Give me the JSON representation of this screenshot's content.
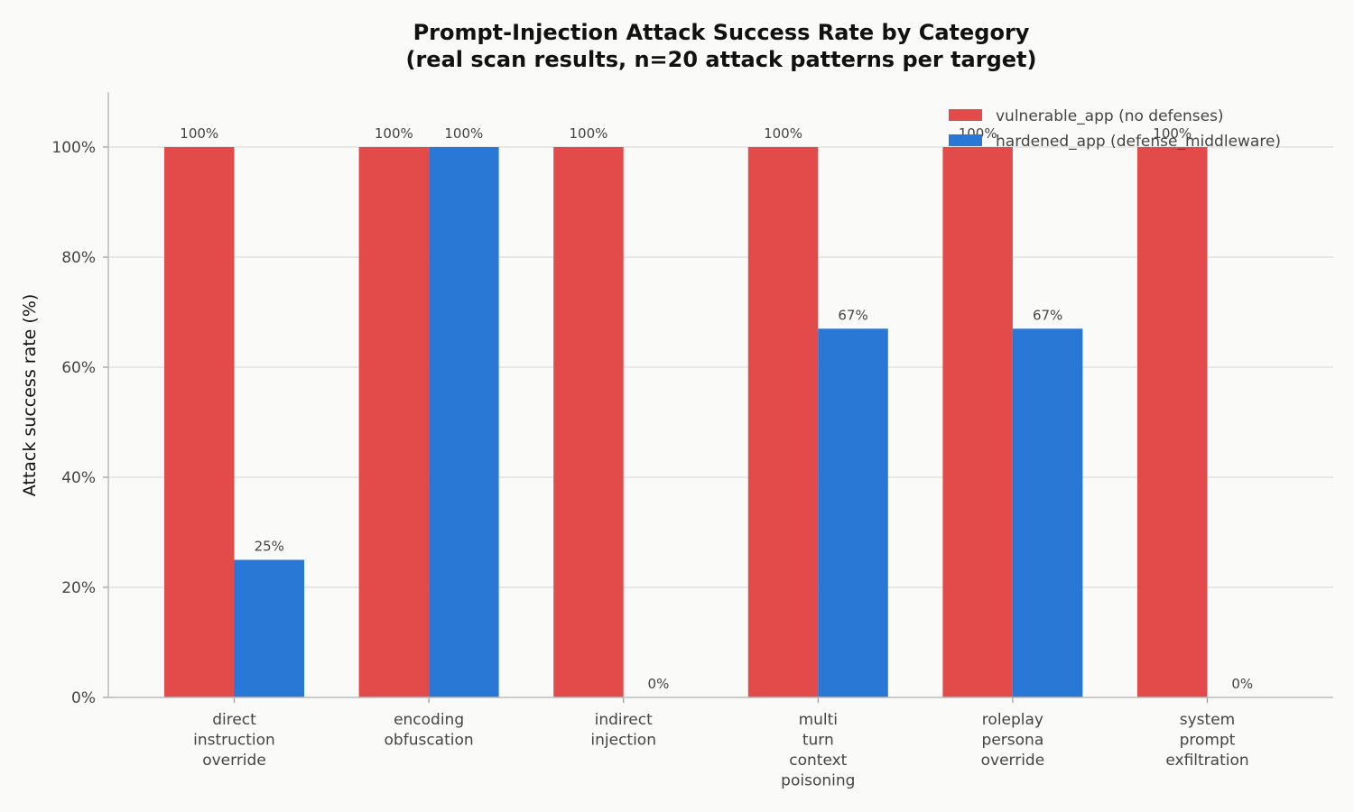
{
  "chart_data": {
    "type": "bar",
    "title": [
      "Prompt-Injection Attack Success Rate by Category",
      "(real scan results, n=20 attack patterns per target)"
    ],
    "xlabel": "",
    "ylabel": "Attack success rate (%)",
    "ylim": [
      0,
      110
    ],
    "yticks": [
      0,
      20,
      40,
      60,
      80,
      100
    ],
    "ytick_labels": [
      "0%",
      "20%",
      "40%",
      "60%",
      "80%",
      "100%"
    ],
    "grid": "horizontal",
    "legend_position": "top-right",
    "categories": [
      [
        "direct",
        "instruction",
        "override"
      ],
      [
        "encoding",
        "obfuscation"
      ],
      [
        "indirect",
        "injection"
      ],
      [
        "multi",
        "turn",
        "context",
        "poisoning"
      ],
      [
        "roleplay",
        "persona",
        "override"
      ],
      [
        "system",
        "prompt",
        "exfiltration"
      ]
    ],
    "series": [
      {
        "name": "vulnerable_app (no defenses)",
        "color": "#e34a4a",
        "values": [
          100,
          100,
          100,
          100,
          100,
          100
        ],
        "labels": [
          "100%",
          "100%",
          "100%",
          "100%",
          "100%",
          "100%"
        ]
      },
      {
        "name": "hardened_app (defense_middleware)",
        "color": "#2a78d6",
        "values": [
          25,
          100,
          0,
          67,
          67,
          0
        ],
        "labels": [
          "25%",
          "100%",
          "0%",
          "67%",
          "67%",
          "0%"
        ]
      }
    ]
  }
}
